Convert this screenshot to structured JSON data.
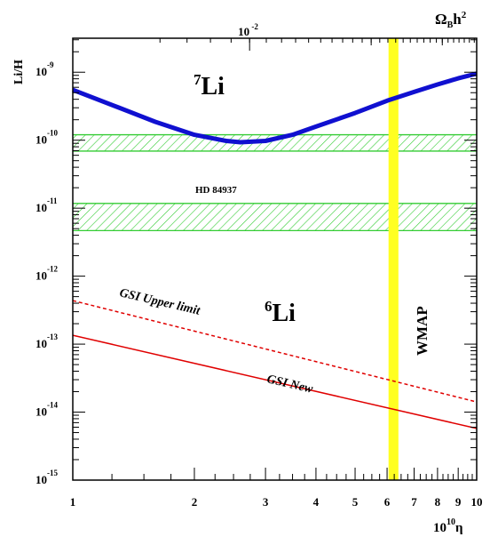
{
  "chart_data": {
    "type": "line",
    "title": "",
    "xlabel": {
      "base": "10",
      "exp": "10",
      "sym": "η"
    },
    "ylabel": "Li/H",
    "top_axis": {
      "label_main": "Ω",
      "label_sub": "B",
      "label_tail": "h",
      "label_exp": "2",
      "tick": {
        "base": "10",
        "exp": "-2"
      }
    },
    "x_scale": "log",
    "y_scale": "log",
    "xlim": [
      1,
      10
    ],
    "ylim_log10": [
      -15,
      -8.5
    ],
    "x_ticks": [
      "1",
      "2",
      "3",
      "4",
      "5",
      "6",
      "7",
      "8",
      "9",
      "10"
    ],
    "y_ticks": [
      {
        "base": "10",
        "exp": "-9"
      },
      {
        "base": "10",
        "exp": "-10"
      },
      {
        "base": "10",
        "exp": "-11"
      },
      {
        "base": "10",
        "exp": "-12"
      },
      {
        "base": "10",
        "exp": "-13"
      },
      {
        "base": "10",
        "exp": "-14"
      },
      {
        "base": "10",
        "exp": "-15"
      }
    ],
    "series": [
      {
        "label_sup": "7",
        "label_main": "Li",
        "color": "#1010d0",
        "x": [
          1.0,
          1.3,
          1.6,
          2.0,
          2.4,
          2.6,
          3.0,
          3.5,
          4.0,
          5.0,
          6.0,
          7.0,
          8.0,
          9.0,
          10.0
        ],
        "log10_y": [
          -9.26,
          -9.52,
          -9.73,
          -9.92,
          -10.01,
          -10.03,
          -10.01,
          -9.92,
          -9.8,
          -9.6,
          -9.42,
          -9.29,
          -9.18,
          -9.09,
          -9.02
        ]
      },
      {
        "label": "GSI Upper limit",
        "color": "#e00000",
        "style": "dashed",
        "x": [
          1,
          10
        ],
        "log10_y": [
          -12.36,
          -13.85
        ]
      },
      {
        "label": "GSI New",
        "color": "#e00000",
        "style": "solid",
        "x": [
          1,
          10
        ],
        "log10_y": [
          -12.87,
          -14.24
        ]
      }
    ],
    "li6_label": {
      "sup": "6",
      "main": "Li",
      "color": "#e00000"
    },
    "bands": [
      {
        "log10_y_range": [
          -10.16,
          -9.92
        ],
        "color": "#33cc33",
        "hatch": true
      },
      {
        "label": "HD 84937",
        "log10_y_range": [
          -11.33,
          -10.93
        ],
        "color": "#33cc33",
        "hatch": true
      }
    ],
    "vertical_band": {
      "label": "WMAP",
      "x_range": [
        6.05,
        6.4
      ],
      "color": "#ffff22"
    },
    "grid": false
  }
}
